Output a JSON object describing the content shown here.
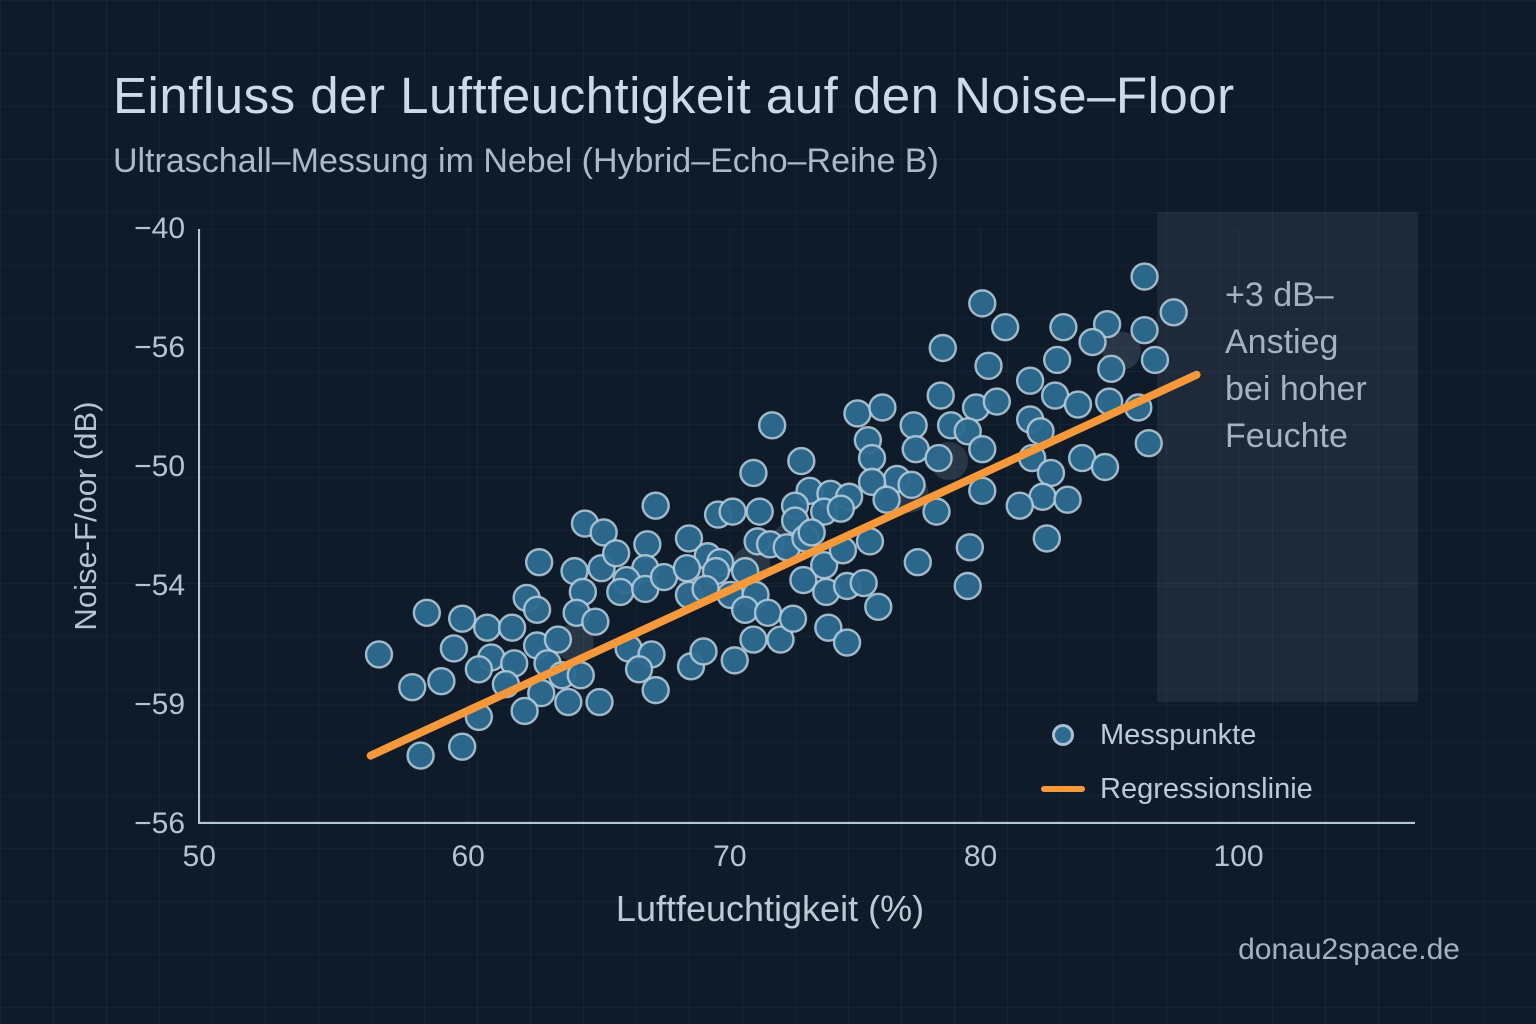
{
  "header": {
    "title": "Einfluss der Luftfeuchtigkeit auf den Noise–Floor",
    "subtitle": "Ultraschall–Messung im Nebel (Hybrid–Echo–Reihe B)"
  },
  "axes": {
    "x": {
      "label": "Luftfeuchtigkeit (%)",
      "ticks": [
        {
          "label": "50",
          "f": 0.001
        },
        {
          "label": "60",
          "f": 0.222
        },
        {
          "label": "70",
          "f": 0.437
        },
        {
          "label": "80",
          "f": 0.643
        },
        {
          "label": "100",
          "f": 0.855
        }
      ]
    },
    "y": {
      "label": "Noise-F/oor (dB)",
      "ticks": [
        {
          "label": "−40",
          "f": 0.0
        },
        {
          "label": "−56",
          "f": 0.2
        },
        {
          "label": "−50",
          "f": 0.4
        },
        {
          "label": "−54",
          "f": 0.6
        },
        {
          "label": "−59",
          "f": 0.8
        },
        {
          "label": "−56",
          "f": 1.0
        }
      ]
    }
  },
  "legend": {
    "points_label": "Messpunkte",
    "line_label": "Regressionslinie"
  },
  "annotation": {
    "lines": [
      "+3 dB–",
      "Anstieg",
      "bei hoher",
      "Feuchte"
    ]
  },
  "watermark": "donau2space.de",
  "colors": {
    "background": "#101b29",
    "point_fill": "#2d6a90",
    "point_stroke": "#b9cfdc",
    "regression_line": "#f7983a",
    "axis": "#b2c7d7",
    "title_text": "#cbdbea",
    "annotation_panel": "rgba(186,210,234,0.085)"
  },
  "chart_data": {
    "type": "scatter",
    "title": "Einfluss der Luftfeuchtigkeit auf den Noise–Floor",
    "subtitle": "Ultraschall–Messung im Nebel (Hybrid–Echo–Reihe B)",
    "xlabel": "Luftfeuchtigkeit (%)",
    "ylabel": "Noise-F/oor (dB)",
    "xlim": [
      50,
      108.5
    ],
    "ylim": [
      -60,
      -40
    ],
    "x_ticks_shown": [
      "50",
      "60",
      "70",
      "80",
      "100"
    ],
    "y_ticks_shown": [
      "−40",
      "−56",
      "−50",
      "−54",
      "−59",
      "−56"
    ],
    "grid": true,
    "legend_position": "lower right",
    "annotation": "+3 dB–Anstieg bei hoher Feuchte",
    "series": [
      {
        "name": "Messpunkte",
        "type": "scatter",
        "marker": "circle",
        "color": "#2d6a90",
        "points": [
          [
            68.6,
            -49.9
          ],
          [
            87.7,
            -42.5
          ],
          [
            88.8,
            -43.3
          ],
          [
            85.8,
            -44.0
          ],
          [
            88.0,
            -44.6
          ],
          [
            85.7,
            -45.6
          ],
          [
            87.4,
            -46.0
          ],
          [
            88.4,
            -45.8
          ],
          [
            81.7,
            -46.2
          ],
          [
            82.9,
            -46.0
          ],
          [
            84.4,
            -46.6
          ],
          [
            86.2,
            -46.6
          ],
          [
            87.0,
            -46.8
          ],
          [
            77.6,
            -46.6
          ],
          [
            82.2,
            -47.1
          ],
          [
            87.7,
            -47.4
          ],
          [
            82.4,
            -47.7
          ],
          [
            84.5,
            -47.4
          ],
          [
            85.6,
            -47.7
          ],
          [
            79.0,
            -47.8
          ],
          [
            76.7,
            -48.2
          ],
          [
            83.6,
            -48.4
          ],
          [
            84.3,
            -48.6
          ],
          [
            82.4,
            -48.5
          ],
          [
            79.4,
            -48.8
          ],
          [
            80.4,
            -48.9
          ],
          [
            81.3,
            -49.0
          ],
          [
            83.1,
            -49.1
          ],
          [
            78.7,
            -49.3
          ],
          [
            80.1,
            -49.5
          ],
          [
            72.0,
            -49.3
          ],
          [
            75.0,
            -49.6
          ],
          [
            75.7,
            -49.5
          ],
          [
            77.0,
            -49.5
          ],
          [
            78.7,
            -49.8
          ],
          [
            80.9,
            -49.4
          ],
          [
            85.5,
            -49.5
          ],
          [
            87.7,
            -48.8
          ],
          [
            95.5,
            -41.6
          ],
          [
            96.9,
            -42.8
          ],
          [
            91.6,
            -43.3
          ],
          [
            93.7,
            -43.2
          ],
          [
            95.5,
            -43.4
          ],
          [
            93.0,
            -43.8
          ],
          [
            91.3,
            -44.4
          ],
          [
            93.9,
            -44.7
          ],
          [
            96.0,
            -44.4
          ],
          [
            90.0,
            -45.1
          ],
          [
            91.2,
            -45.6
          ],
          [
            92.3,
            -45.9
          ],
          [
            93.8,
            -45.8
          ],
          [
            90.0,
            -46.4
          ],
          [
            90.5,
            -46.8
          ],
          [
            95.2,
            -46.0
          ],
          [
            95.7,
            -47.2
          ],
          [
            90.1,
            -47.7
          ],
          [
            92.5,
            -47.7
          ],
          [
            93.6,
            -48.0
          ],
          [
            91.0,
            -48.2
          ],
          [
            90.6,
            -49.0
          ],
          [
            91.8,
            -49.1
          ],
          [
            89.5,
            -49.3
          ],
          [
            90.8,
            -50.4
          ],
          [
            66.4,
            -51.2
          ],
          [
            68.1,
            -51.5
          ],
          [
            69.4,
            -51.4
          ],
          [
            65.8,
            -52.4
          ],
          [
            66.3,
            -52.8
          ],
          [
            68.5,
            -52.2
          ],
          [
            61.0,
            -52.9
          ],
          [
            62.7,
            -53.1
          ],
          [
            63.9,
            -53.4
          ],
          [
            65.1,
            -53.4
          ],
          [
            68.2,
            -52.9
          ],
          [
            69.1,
            -53.2
          ],
          [
            62.3,
            -54.1
          ],
          [
            58.7,
            -54.3
          ],
          [
            64.1,
            -54.4
          ],
          [
            66.3,
            -54.0
          ],
          [
            67.3,
            -53.8
          ],
          [
            63.5,
            -54.8
          ],
          [
            65.2,
            -54.6
          ],
          [
            66.8,
            -54.6
          ],
          [
            67.5,
            -55.0
          ],
          [
            68.4,
            -55.0
          ],
          [
            60.3,
            -55.4
          ],
          [
            61.7,
            -55.2
          ],
          [
            64.8,
            -55.3
          ],
          [
            66.5,
            -55.6
          ],
          [
            67.8,
            -55.9
          ],
          [
            69.3,
            -55.9
          ],
          [
            63.5,
            -56.4
          ],
          [
            65.7,
            -56.2
          ],
          [
            60.7,
            -57.7
          ],
          [
            62.7,
            -57.4
          ],
          [
            69.5,
            -50.2
          ],
          [
            70.1,
            -50.9
          ],
          [
            71.6,
            -50.6
          ],
          [
            73.6,
            -50.4
          ],
          [
            71.5,
            -51.4
          ],
          [
            70.6,
            -51.8
          ],
          [
            70.3,
            -52.2
          ],
          [
            71.5,
            -52.1
          ],
          [
            72.4,
            -51.7
          ],
          [
            74.5,
            -51.0
          ],
          [
            75.1,
            -51.2
          ],
          [
            74.9,
            -51.5
          ],
          [
            73.5,
            -51.4
          ],
          [
            73.6,
            -52.3
          ],
          [
            74.4,
            -52.1
          ],
          [
            75.6,
            -52.3
          ],
          [
            76.3,
            -51.5
          ],
          [
            76.9,
            -50.5
          ],
          [
            77.5,
            -50.6
          ],
          [
            78.3,
            -50.7
          ],
          [
            79.2,
            -50.4
          ],
          [
            79.5,
            -50.2
          ],
          [
            76.8,
            -52.3
          ],
          [
            76.3,
            -52.8
          ],
          [
            77.4,
            -52.9
          ],
          [
            76.7,
            -53.8
          ],
          [
            78.0,
            -53.8
          ],
          [
            78.6,
            -53.1
          ],
          [
            79.1,
            -51.8
          ],
          [
            80.1,
            -51.3
          ],
          [
            80.2,
            -52.2
          ],
          [
            81.0,
            -50.8
          ],
          [
            81.2,
            -52.0
          ],
          [
            82.0,
            -51.9
          ],
          [
            82.3,
            -50.5
          ],
          [
            82.7,
            -52.7
          ],
          [
            80.3,
            -53.4
          ],
          [
            81.2,
            -53.9
          ],
          [
            84.6,
            -51.2
          ],
          [
            87.1,
            -50.7
          ],
          [
            87.0,
            -52.0
          ],
          [
            70.7,
            -54.1
          ],
          [
            71.8,
            -54.3
          ],
          [
            71.2,
            -54.8
          ],
          [
            73.7,
            -54.7
          ],
          [
            74.3,
            -54.2
          ],
          [
            75.8,
            -54.5
          ],
          [
            72.0,
            -55.5
          ]
        ]
      },
      {
        "name": "Regressionslinie",
        "type": "line",
        "color": "#f7983a",
        "points": [
          [
            58.3,
            -57.7
          ],
          [
            98.0,
            -44.9
          ]
        ]
      }
    ],
    "ghost_points": [
      [
        86.1,
        -47.8
      ],
      [
        84.2,
        -48.9
      ],
      [
        68.1,
        -53.9
      ],
      [
        74.0,
        -51.9
      ],
      [
        76.6,
        -51.3
      ],
      [
        78.5,
        -50.5
      ],
      [
        94.4,
        -44.1
      ]
    ]
  }
}
